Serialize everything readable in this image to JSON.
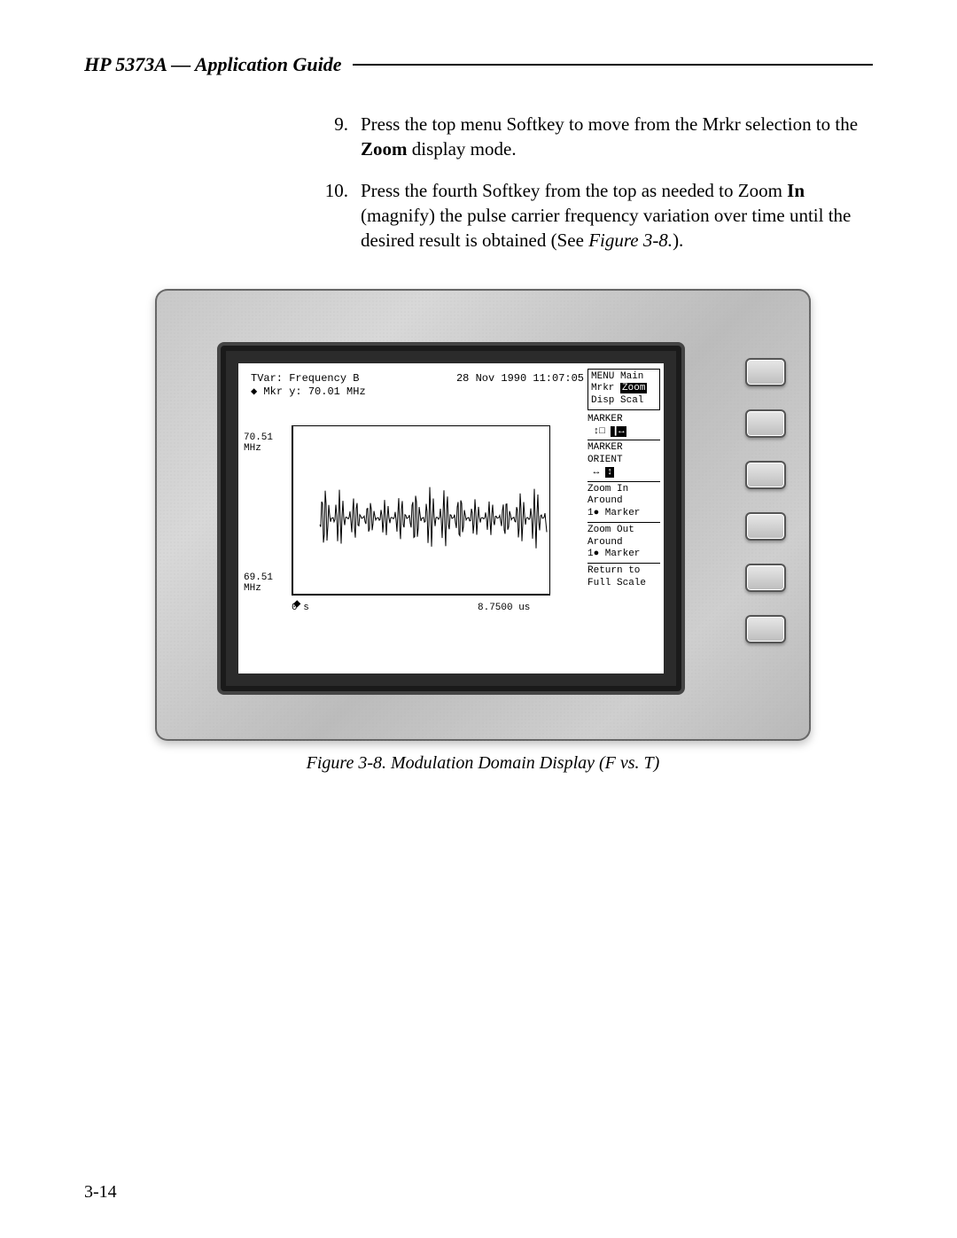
{
  "header": "HP 5373A — Application Guide",
  "steps": [
    {
      "num": "9.",
      "segments": [
        {
          "t": "Press the top menu Softkey to move from the Mrkr selection to the "
        },
        {
          "t": "Zoom",
          "b": true
        },
        {
          "t": " display mode."
        }
      ]
    },
    {
      "num": "10.",
      "segments": [
        {
          "t": "Press the fourth Softkey from the top as needed to Zoom "
        },
        {
          "t": "In",
          "b": true
        },
        {
          "t": " (magnify) the pulse carrier frequency variation over time until the desired result is obtained (See "
        },
        {
          "t": "Figure 3-8.",
          "i": true
        },
        {
          "t": ")."
        }
      ]
    }
  ],
  "crt": {
    "line1_left": "TVar: Frequency B",
    "line1_right": "28 Nov 1990 11:07:05",
    "line2": "◆ Mkr y: 70.01 MHz",
    "y_top": "70.51",
    "y_top_unit": "MHz",
    "y_bot": "69.51",
    "y_bot_unit": "MHz",
    "x_left": "0  s",
    "x_right": "8.7500 us",
    "waveform_color": "#000000",
    "plot_border_color": "#000000",
    "background": "#ffffff"
  },
  "menu": {
    "title": "MENU Main",
    "row_mrkr_label": "Mrkr",
    "row_mrkr_sel": "Zoom",
    "row_disp": "Disp Scal",
    "marker_hdr": "MARKER",
    "marker_icons_left": "↕□",
    "marker_icons_right": "┃↔",
    "orient_hdr1": "MARKER",
    "orient_hdr2": "ORIENT",
    "orient_icon_left": "↔",
    "orient_icon_right": "↕",
    "zoom_in1": "Zoom In",
    "zoom_in2": "Around",
    "zoom_in3": "1● Marker",
    "zoom_out1": "Zoom Out",
    "zoom_out2": "Around",
    "zoom_out3": "1● Marker",
    "return1": "Return to",
    "return2": "Full Scale"
  },
  "caption": "Figure 3-8. Modulation Domain Display (F vs. T)",
  "page_number": "3-14",
  "softkey_count": 6
}
